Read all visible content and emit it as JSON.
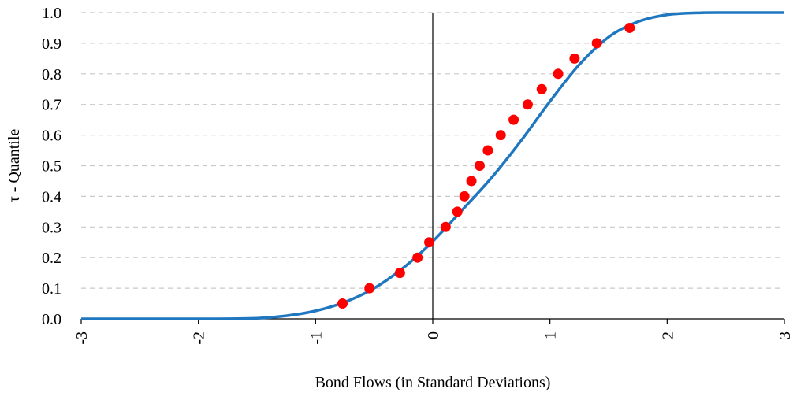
{
  "chart_data": {
    "type": "scatter",
    "xlabel": "Bond Flows (in Standard Deviations)",
    "ylabel": "τ - Quantile",
    "xlim": [
      -3,
      3
    ],
    "ylim": [
      0,
      1
    ],
    "x_ticks": [
      "-3",
      "-2",
      "-1",
      "0",
      "1",
      "2",
      "3"
    ],
    "y_ticks": [
      "0.0",
      "0.1",
      "0.2",
      "0.3",
      "0.4",
      "0.5",
      "0.6",
      "0.7",
      "0.8",
      "0.9",
      "1.0"
    ],
    "grid": "horizontal dashed",
    "curve": {
      "kind": "fitted cdf",
      "color": "#1f77c0",
      "x": [
        -3.0,
        -2.0,
        -1.5,
        -1.25,
        -1.0,
        -0.75,
        -0.5,
        -0.25,
        0.0,
        0.25,
        0.5,
        0.75,
        1.0,
        1.25,
        1.5,
        1.75,
        2.0,
        2.25,
        2.5,
        3.0
      ],
      "y": [
        0.0,
        0.0,
        0.002,
        0.01,
        0.026,
        0.055,
        0.1,
        0.167,
        0.253,
        0.355,
        0.46,
        0.58,
        0.71,
        0.83,
        0.92,
        0.97,
        0.993,
        0.999,
        1.0,
        1.0
      ]
    },
    "points": {
      "color": "#ff0000",
      "x": [
        -0.77,
        -0.54,
        -0.28,
        -0.13,
        -0.03,
        0.11,
        0.21,
        0.27,
        0.33,
        0.4,
        0.47,
        0.58,
        0.69,
        0.81,
        0.93,
        1.07,
        1.21,
        1.4,
        1.68
      ],
      "y": [
        0.05,
        0.1,
        0.15,
        0.2,
        0.25,
        0.3,
        0.35,
        0.4,
        0.45,
        0.5,
        0.55,
        0.6,
        0.65,
        0.7,
        0.75,
        0.8,
        0.85,
        0.9,
        0.95
      ]
    }
  }
}
